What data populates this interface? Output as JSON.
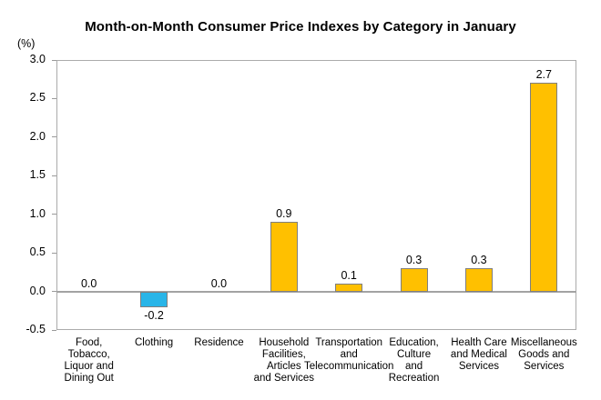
{
  "chart_data": {
    "type": "bar",
    "title": "Month-on-Month Consumer Price Indexes by Category in January",
    "unit_label": "(%)",
    "categories": [
      "Food,\nTobacco,\nLiquor and\nDining Out",
      "Clothing",
      "Residence",
      "Household\nFacilities,\nArticles\nand Services",
      "Transportation\nand\nTelecommunication",
      "Education,\nCulture\nand\nRecreation",
      "Health Care\nand Medical\nServices",
      "Miscellaneous\nGoods and\nServices"
    ],
    "values": [
      0.0,
      -0.2,
      0.0,
      0.9,
      0.1,
      0.3,
      0.3,
      2.7
    ],
    "value_labels": [
      "0.0",
      "-0.2",
      "0.0",
      "0.9",
      "0.1",
      "0.3",
      "0.3",
      "2.7"
    ],
    "ylim": [
      -0.5,
      3.0
    ],
    "ytick_step": 0.5,
    "yticks": [
      "3.0",
      "2.5",
      "2.0",
      "1.5",
      "1.0",
      "0.5",
      "0.0",
      "-0.5"
    ],
    "grid": false,
    "legend": "none",
    "colors": {
      "positive_bar": "#FFC000",
      "negative_bar": "#29B5E8",
      "bar_border": "#7F7F7F",
      "plot_border": "#ABABAB",
      "zero_line": "#A3A3A3",
      "text": "#000000"
    }
  }
}
